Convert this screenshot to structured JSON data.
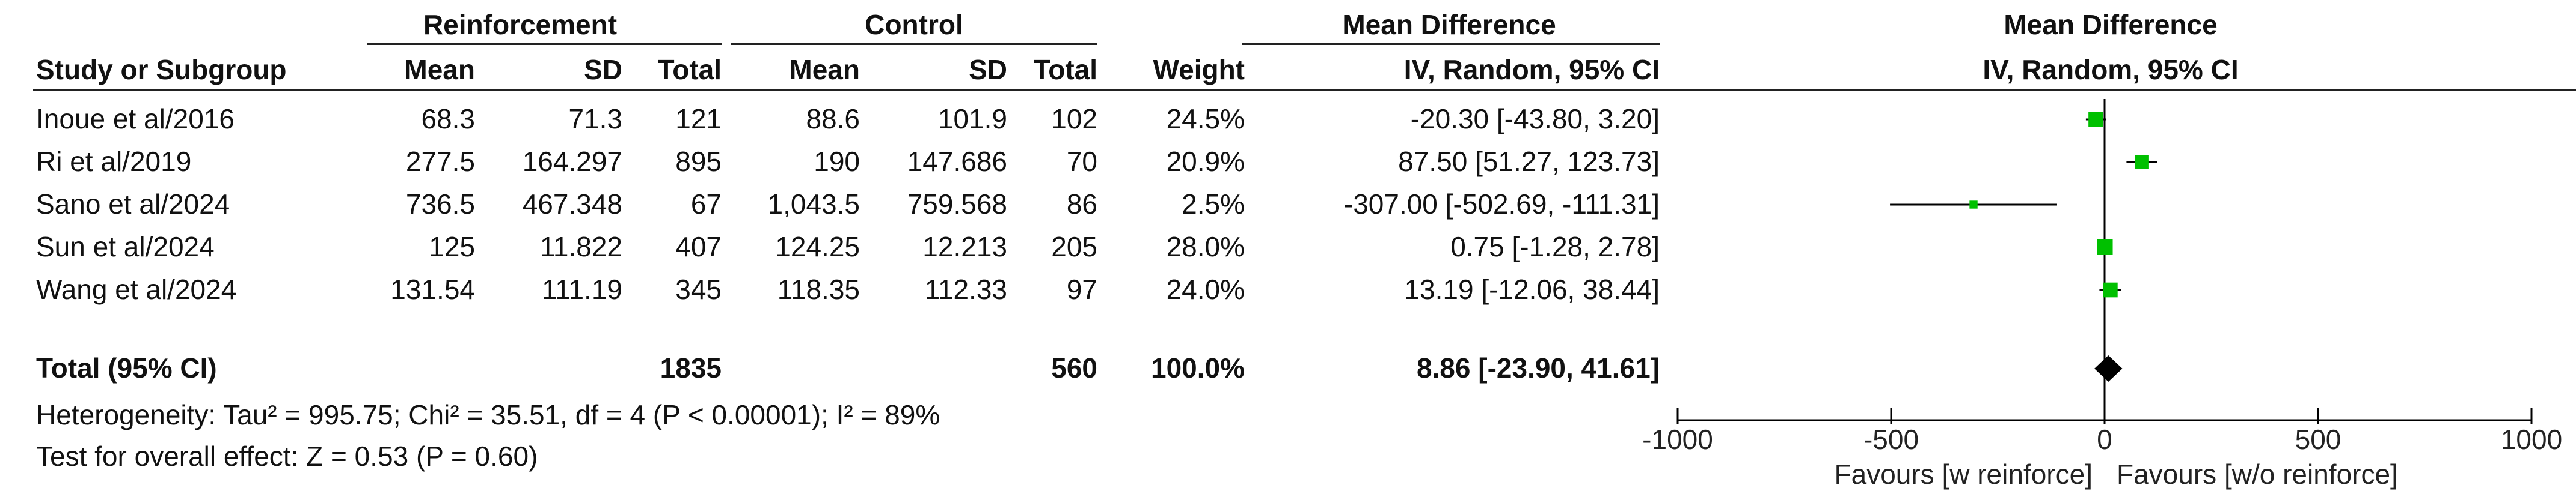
{
  "table": {
    "group_headers": {
      "reinforcement": "Reinforcement",
      "control": "Control",
      "mean_difference": "Mean Difference",
      "plot_mean_difference": "Mean Difference"
    },
    "columns": {
      "study": "Study or Subgroup",
      "r_mean": "Mean",
      "r_sd": "SD",
      "r_total": "Total",
      "c_mean": "Mean",
      "c_sd": "SD",
      "c_total": "Total",
      "weight": "Weight",
      "md_method": "IV, Random, 95% CI",
      "plot_method": "IV, Random, 95% CI"
    },
    "rows": [
      {
        "study": "Inoue et al/2016",
        "r_mean": "68.3",
        "r_sd": "71.3",
        "r_total": "121",
        "c_mean": "88.6",
        "c_sd": "101.9",
        "c_total": "102",
        "weight": "24.5%",
        "md": "-20.30 [-43.80, 3.20]"
      },
      {
        "study": "Ri et al/2019",
        "r_mean": "277.5",
        "r_sd": "164.297",
        "r_total": "895",
        "c_mean": "190",
        "c_sd": "147.686",
        "c_total": "70",
        "weight": "20.9%",
        "md": "87.50 [51.27, 123.73]"
      },
      {
        "study": "Sano et al/2024",
        "r_mean": "736.5",
        "r_sd": "467.348",
        "r_total": "67",
        "c_mean": "1,043.5",
        "c_sd": "759.568",
        "c_total": "86",
        "weight": "2.5%",
        "md": "-307.00 [-502.69, -111.31]"
      },
      {
        "study": "Sun et al/2024",
        "r_mean": "125",
        "r_sd": "11.822",
        "r_total": "407",
        "c_mean": "124.25",
        "c_sd": "12.213",
        "c_total": "205",
        "weight": "28.0%",
        "md": "0.75 [-1.28, 2.78]"
      },
      {
        "study": "Wang et al/2024",
        "r_mean": "131.54",
        "r_sd": "111.19",
        "r_total": "345",
        "c_mean": "118.35",
        "c_sd": "112.33",
        "c_total": "97",
        "weight": "24.0%",
        "md": "13.19 [-12.06, 38.44]"
      }
    ],
    "total": {
      "label": "Total (95% CI)",
      "r_total": "1835",
      "c_total": "560",
      "weight": "100.0%",
      "md": "8.86 [-23.90, 41.61]"
    },
    "heterogeneity": "Heterogeneity: Tau² = 995.75; Chi² = 35.51, df = 4 (P < 0.00001); I² = 89%",
    "overall_effect": "Test for overall effect: Z = 0.53 (P = 0.60)"
  },
  "chart_data": {
    "type": "scatter",
    "subtype": "forest",
    "title": "Mean Difference",
    "subtitle": "IV, Random, 95% CI",
    "xlim": [
      -1000,
      1000
    ],
    "xticks": [
      -1000,
      -500,
      0,
      500,
      1000
    ],
    "xtick_labels": [
      "-1000",
      "-500",
      "0",
      "500",
      "1000"
    ],
    "favours_left": "Favours [w reinforce]",
    "favours_right": "Favours [w/o reinforce]",
    "studies": [
      {
        "label": "Inoue et al/2016",
        "md": -20.3,
        "lo": -43.8,
        "hi": 3.2,
        "weight": 24.5
      },
      {
        "label": "Ri et al/2019",
        "md": 87.5,
        "lo": 51.27,
        "hi": 123.73,
        "weight": 20.9
      },
      {
        "label": "Sano et al/2024",
        "md": -307.0,
        "lo": -502.69,
        "hi": -111.31,
        "weight": 2.5
      },
      {
        "label": "Sun et al/2024",
        "md": 0.75,
        "lo": -1.28,
        "hi": 2.78,
        "weight": 28.0
      },
      {
        "label": "Wang et al/2024",
        "md": 13.19,
        "lo": -12.06,
        "hi": 38.44,
        "weight": 24.0
      }
    ],
    "pooled": {
      "md": 8.86,
      "lo": -23.9,
      "hi": 41.61
    },
    "colors": {
      "marker": "#00c000",
      "line": "#000000",
      "diamond": "#000000"
    }
  }
}
